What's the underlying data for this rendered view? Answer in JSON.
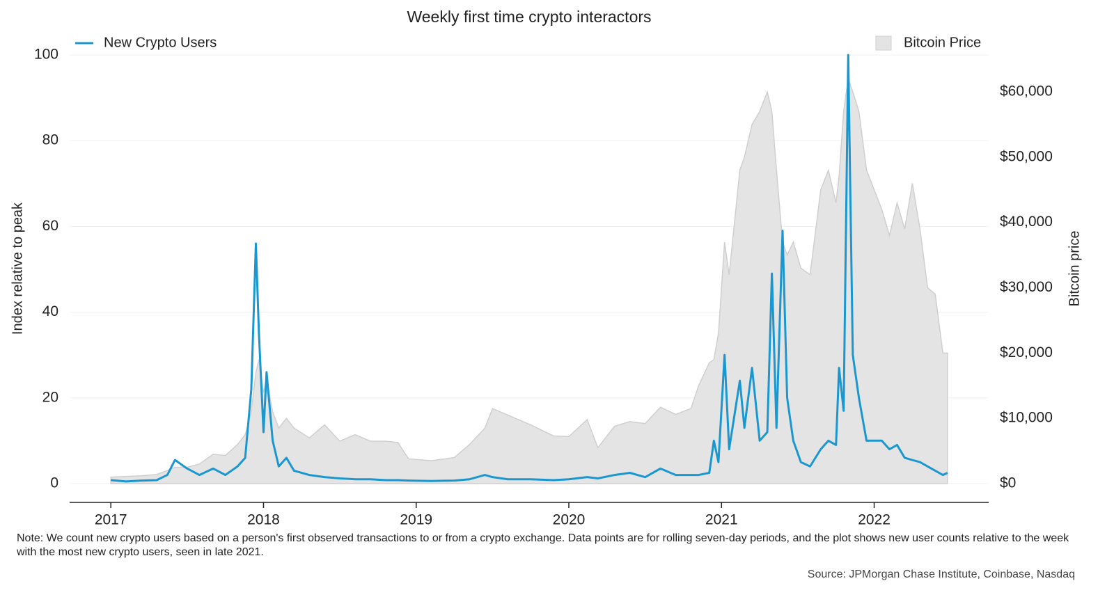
{
  "chart_data": {
    "type": "line",
    "title": "Weekly first time crypto interactors",
    "y_label": "Index relative to peak",
    "y2_label": "Bitcoin price",
    "note": "Note: We count new crypto users based on a person's first observed transactions to or from a crypto exchange. Data points are for rolling seven-day periods, and the plot shows new user counts relative to the week with the most new crypto users, seen in late 2021.",
    "source": "Source: JPMorgan Chase Institute, Coinbase, Nasdaq",
    "x": [
      2017.0,
      2017.1,
      2017.2,
      2017.3,
      2017.37,
      2017.42,
      2017.5,
      2017.58,
      2017.67,
      2017.75,
      2017.83,
      2017.88,
      2017.92,
      2017.95,
      2017.97,
      2018.0,
      2018.02,
      2018.06,
      2018.1,
      2018.15,
      2018.2,
      2018.3,
      2018.4,
      2018.5,
      2018.6,
      2018.7,
      2018.8,
      2018.88,
      2018.95,
      2019.1,
      2019.25,
      2019.35,
      2019.45,
      2019.5,
      2019.6,
      2019.75,
      2019.9,
      2020.0,
      2020.12,
      2020.19,
      2020.3,
      2020.4,
      2020.5,
      2020.6,
      2020.7,
      2020.8,
      2020.85,
      2020.92,
      2020.95,
      2020.98,
      2021.02,
      2021.05,
      2021.12,
      2021.15,
      2021.2,
      2021.25,
      2021.3,
      2021.33,
      2021.36,
      2021.4,
      2021.43,
      2021.47,
      2021.52,
      2021.58,
      2021.65,
      2021.7,
      2021.75,
      2021.77,
      2021.8,
      2021.83,
      2021.86,
      2021.9,
      2021.95,
      2022.05,
      2022.1,
      2022.15,
      2022.2,
      2022.25,
      2022.3,
      2022.35,
      2022.4,
      2022.45,
      2022.48
    ],
    "series": [
      {
        "name": "Bitcoin Price",
        "type": "area",
        "axis": "y2",
        "color": "#e4e4e4",
        "stroke": "#cfcfcf",
        "values": [
          1000,
          1100,
          1200,
          1400,
          2000,
          2500,
          2500,
          3000,
          4500,
          4300,
          6000,
          7500,
          11000,
          17000,
          19000,
          14000,
          16000,
          11000,
          8500,
          10000,
          8500,
          7000,
          9000,
          6500,
          7500,
          6500,
          6500,
          6300,
          3800,
          3500,
          4000,
          6000,
          8500,
          11500,
          10500,
          9000,
          7300,
          7200,
          9800,
          5500,
          8800,
          9500,
          9200,
          11700,
          10600,
          11500,
          15000,
          18500,
          19000,
          23000,
          37000,
          32000,
          48000,
          50000,
          55000,
          57000,
          60000,
          57000,
          48000,
          37000,
          35000,
          37000,
          33000,
          32000,
          45000,
          48000,
          43000,
          47000,
          57000,
          62000,
          60000,
          57000,
          48000,
          42000,
          38000,
          43000,
          39000,
          46000,
          39000,
          30000,
          29000,
          20000,
          20000
        ]
      },
      {
        "name": "New Crypto Users",
        "type": "line",
        "color": "#1b97cf",
        "values": [
          0.8,
          0.5,
          0.7,
          0.8,
          2,
          5.5,
          3.5,
          2,
          3.5,
          2,
          4,
          6,
          22,
          56,
          35,
          12,
          26,
          10,
          4,
          6,
          3,
          2,
          1.5,
          1.2,
          1,
          1,
          0.8,
          0.8,
          0.7,
          0.6,
          0.7,
          1,
          2,
          1.5,
          1,
          1,
          0.8,
          1,
          1.5,
          1.2,
          2,
          2.5,
          1.5,
          3.5,
          2,
          2,
          2,
          2.5,
          10,
          5,
          30,
          8,
          24,
          13,
          27,
          10,
          12,
          49,
          13,
          59,
          20,
          10,
          5,
          4,
          8,
          10,
          9,
          27,
          17,
          100,
          30,
          20,
          10,
          10,
          8,
          9,
          6,
          5.5,
          5,
          4,
          3,
          2,
          2.5
        ]
      }
    ],
    "xlim": [
      2016.73,
      2022.75
    ],
    "xticks": [
      2017,
      2018,
      2019,
      2020,
      2021,
      2022
    ],
    "ylim": [
      -4.4,
      100
    ],
    "yticks": [
      0,
      20,
      40,
      60,
      80,
      100
    ],
    "y2lim": [
      -2880,
      65650
    ],
    "y2ticks": [
      {
        "value": 0,
        "label": "$0"
      },
      {
        "value": 10000,
        "label": "$10,000"
      },
      {
        "value": 20000,
        "label": "$20,000"
      },
      {
        "value": 30000,
        "label": "$30,000"
      },
      {
        "value": 40000,
        "label": "$40,000"
      },
      {
        "value": 50000,
        "label": "$50,000"
      },
      {
        "value": 60000,
        "label": "$60,000"
      }
    ],
    "grid": true
  }
}
